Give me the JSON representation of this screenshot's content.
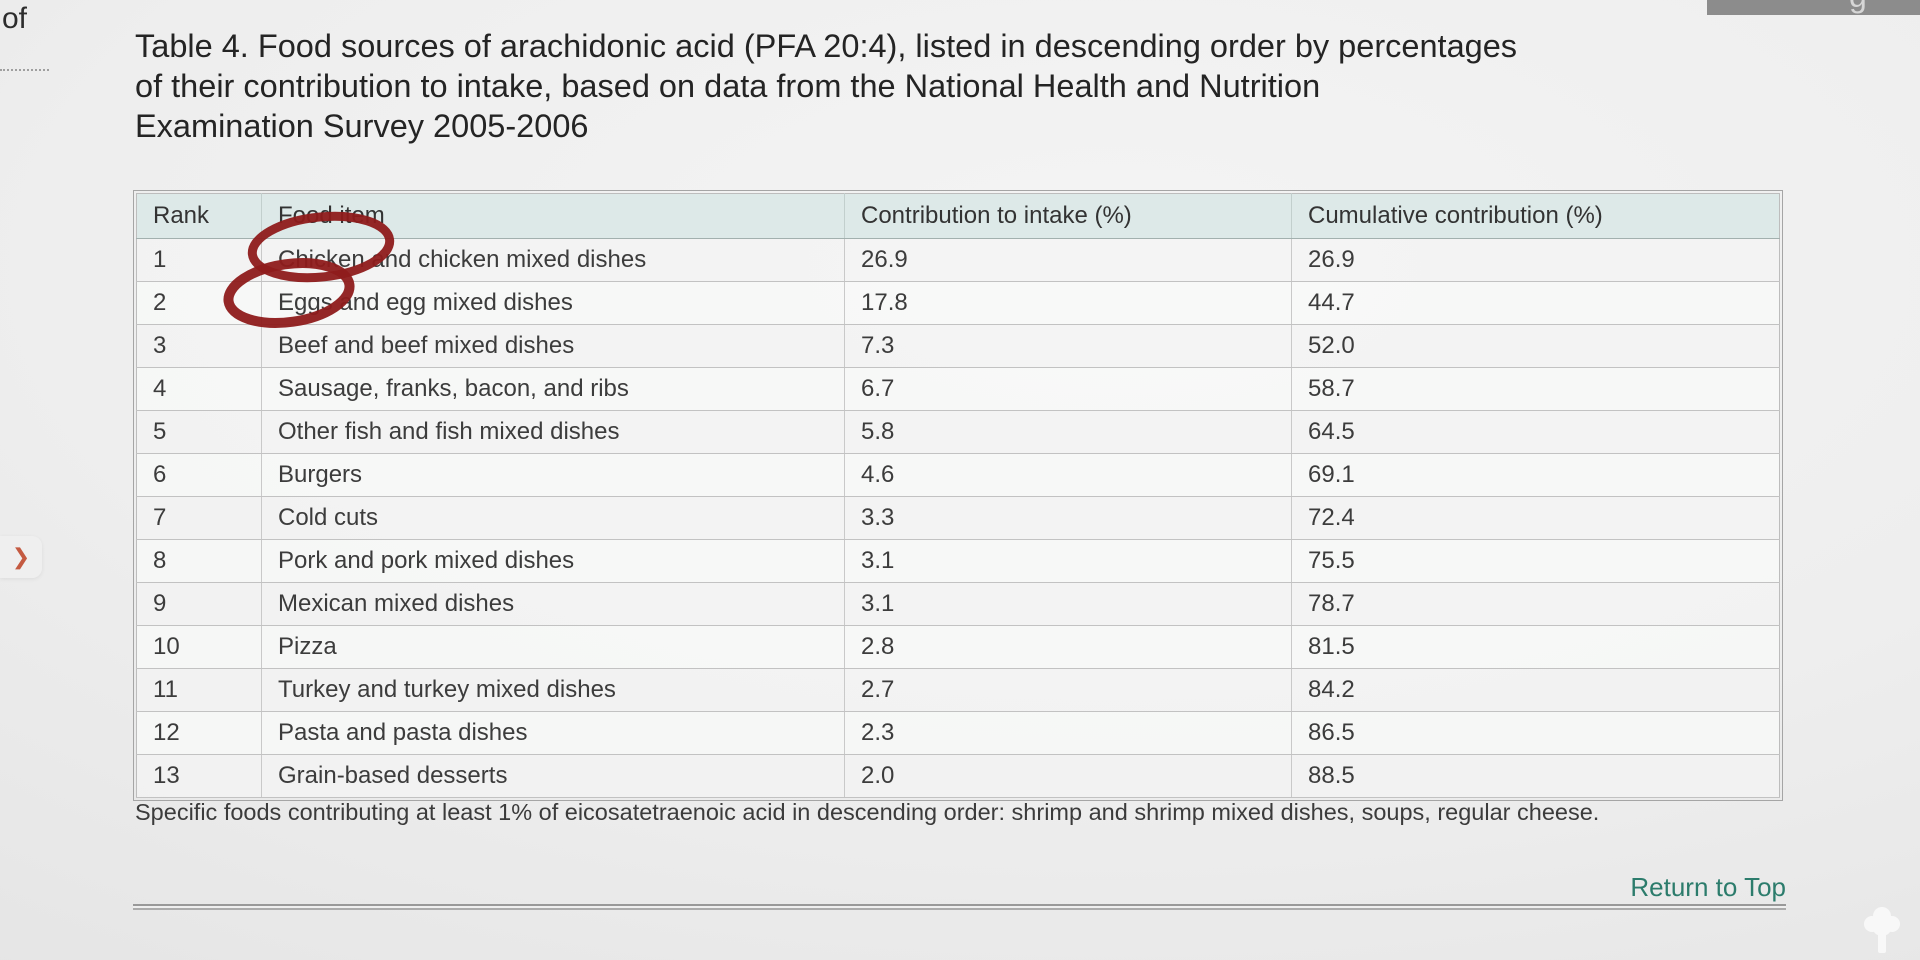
{
  "page_chrome": {
    "clipped_left_text": "of",
    "top_right_partial_text": "g"
  },
  "nav": {
    "expand_chevron": "❯"
  },
  "document": {
    "title_lines": [
      "Table 4. Food sources of arachidonic acid (PFA 20:4), listed in descending order by percentages",
      "of their contribution to intake, based on data from the National Health and Nutrition",
      "Examination Survey 2005-2006"
    ],
    "footnote": "Specific foods contributing at least 1% of eicosatetraenoic acid in descending order: shrimp and shrimp mixed dishes, soups, regular cheese.",
    "return_to_top_label": "Return to Top"
  },
  "table": {
    "columns": [
      "Rank",
      "Food item",
      "Contribution to intake (%)",
      "Cumulative contribution (%)"
    ],
    "rows": [
      [
        "1",
        "Chicken and chicken mixed dishes",
        "26.9",
        "26.9"
      ],
      [
        "2",
        "Eggs and egg mixed dishes",
        "17.8",
        "44.7"
      ],
      [
        "3",
        "Beef and beef mixed dishes",
        "7.3",
        "52.0"
      ],
      [
        "4",
        "Sausage, franks, bacon, and ribs",
        "6.7",
        "58.7"
      ],
      [
        "5",
        "Other fish and fish mixed dishes",
        "5.8",
        "64.5"
      ],
      [
        "6",
        "Burgers",
        "4.6",
        "69.1"
      ],
      [
        "7",
        "Cold cuts",
        "3.3",
        "72.4"
      ],
      [
        "8",
        "Pork and pork mixed dishes",
        "3.1",
        "75.5"
      ],
      [
        "9",
        "Mexican mixed dishes",
        "3.1",
        "78.7"
      ],
      [
        "10",
        "Pizza",
        "2.8",
        "81.5"
      ],
      [
        "11",
        "Turkey and turkey mixed dishes",
        "2.7",
        "84.2"
      ],
      [
        "12",
        "Pasta and pasta dishes",
        "2.3",
        "86.5"
      ],
      [
        "13",
        "Grain-based desserts",
        "2.0",
        "88.5"
      ]
    ]
  },
  "annotations": {
    "circled_items": [
      "Chicken",
      "Eggs"
    ]
  },
  "colors": {
    "annotation_red": "#8e1b1b",
    "link_teal": "#2c7c6c",
    "header_bg": "#dde9e8",
    "chevron_orange": "#c45a41",
    "top_bar_gray": "#8c8c8c"
  }
}
